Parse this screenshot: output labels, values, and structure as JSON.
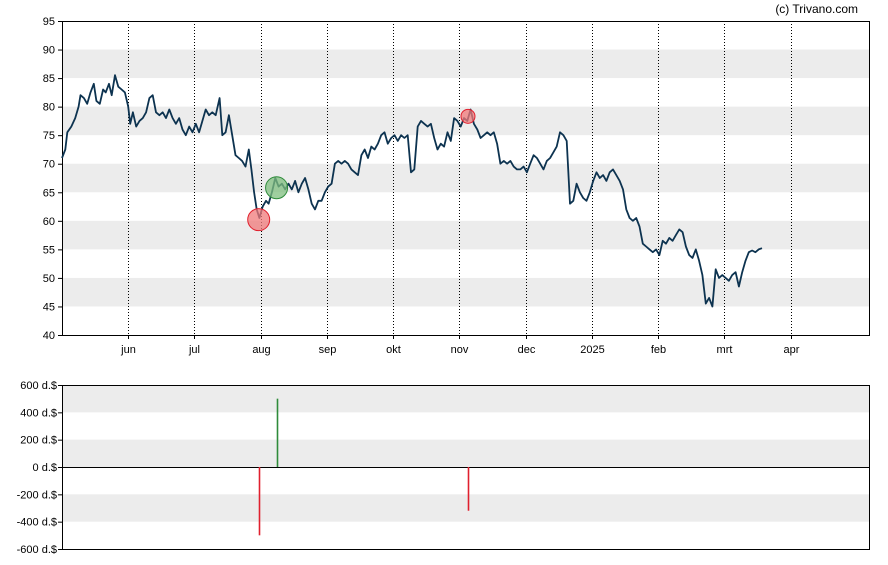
{
  "credit": "(c) Trivano.com",
  "colors": {
    "price_line": "#0d3350",
    "band": "#ececec",
    "buy": "#2e8b3a",
    "sell": "#e0202e",
    "buy_fill": "#7fbf7f",
    "sell_fill": "#f07a7a"
  },
  "chart_data": [
    {
      "type": "line",
      "title": "",
      "xlabel": "",
      "ylabel": "",
      "x_range": [
        0,
        12.2
      ],
      "ylim": [
        40,
        95
      ],
      "y_ticks": [
        40,
        45,
        50,
        55,
        60,
        65,
        70,
        75,
        80,
        85,
        90,
        95
      ],
      "month_ticks": [
        {
          "label": "jun",
          "x": 1
        },
        {
          "label": "jul",
          "x": 2
        },
        {
          "label": "aug",
          "x": 3
        },
        {
          "label": "sep",
          "x": 4
        },
        {
          "label": "okt",
          "x": 5
        },
        {
          "label": "nov",
          "x": 6
        },
        {
          "label": "dec",
          "x": 7
        },
        {
          "label": "2025",
          "x": 8
        },
        {
          "label": "feb",
          "x": 9
        },
        {
          "label": "mrt",
          "x": 10
        },
        {
          "label": "apr",
          "x": 11
        }
      ],
      "grid": "alternating horizontal bands, dotted vertical month lines",
      "series": [
        {
          "points": [
            [
              0.0,
              71.0
            ],
            [
              0.05,
              72.5
            ],
            [
              0.08,
              75.5
            ],
            [
              0.14,
              76.5
            ],
            [
              0.2,
              78.0
            ],
            [
              0.25,
              80.0
            ],
            [
              0.28,
              82.0
            ],
            [
              0.33,
              81.5
            ],
            [
              0.38,
              80.5
            ],
            [
              0.43,
              82.5
            ],
            [
              0.48,
              84.0
            ],
            [
              0.52,
              81.0
            ],
            [
              0.57,
              80.5
            ],
            [
              0.62,
              83.0
            ],
            [
              0.66,
              82.5
            ],
            [
              0.71,
              84.0
            ],
            [
              0.75,
              82.0
            ],
            [
              0.8,
              85.5
            ],
            [
              0.85,
              83.5
            ],
            [
              0.9,
              83.0
            ],
            [
              0.95,
              82.5
            ],
            [
              1.0,
              80.0
            ],
            [
              1.03,
              77.0
            ],
            [
              1.07,
              79.0
            ],
            [
              1.12,
              76.5
            ],
            [
              1.17,
              77.5
            ],
            [
              1.22,
              78.0
            ],
            [
              1.27,
              79.0
            ],
            [
              1.32,
              81.5
            ],
            [
              1.37,
              82.0
            ],
            [
              1.42,
              79.0
            ],
            [
              1.47,
              78.5
            ],
            [
              1.52,
              79.0
            ],
            [
              1.57,
              78.0
            ],
            [
              1.62,
              79.5
            ],
            [
              1.67,
              78.0
            ],
            [
              1.72,
              77.0
            ],
            [
              1.77,
              78.0
            ],
            [
              1.82,
              76.0
            ],
            [
              1.87,
              75.0
            ],
            [
              1.92,
              76.5
            ],
            [
              1.97,
              75.5
            ],
            [
              2.02,
              77.0
            ],
            [
              2.07,
              75.5
            ],
            [
              2.12,
              77.5
            ],
            [
              2.17,
              79.5
            ],
            [
              2.22,
              78.5
            ],
            [
              2.27,
              79.0
            ],
            [
              2.32,
              78.5
            ],
            [
              2.38,
              81.5
            ],
            [
              2.42,
              75.0
            ],
            [
              2.47,
              75.5
            ],
            [
              2.52,
              78.5
            ],
            [
              2.57,
              75.0
            ],
            [
              2.62,
              71.5
            ],
            [
              2.67,
              71.0
            ],
            [
              2.72,
              70.5
            ],
            [
              2.77,
              69.5
            ],
            [
              2.82,
              72.5
            ],
            [
              2.86,
              69.0
            ],
            [
              2.9,
              65.0
            ],
            [
              2.94,
              62.0
            ],
            [
              2.98,
              60.5
            ],
            [
              3.03,
              62.5
            ],
            [
              3.08,
              63.5
            ],
            [
              3.12,
              63.0
            ],
            [
              3.17,
              65.0
            ],
            [
              3.22,
              67.5
            ],
            [
              3.27,
              66.0
            ],
            [
              3.32,
              66.5
            ],
            [
              3.37,
              65.5
            ],
            [
              3.42,
              66.5
            ],
            [
              3.47,
              65.5
            ],
            [
              3.52,
              67.0
            ],
            [
              3.57,
              65.0
            ],
            [
              3.62,
              66.5
            ],
            [
              3.67,
              67.5
            ],
            [
              3.72,
              65.5
            ],
            [
              3.77,
              63.0
            ],
            [
              3.82,
              62.0
            ],
            [
              3.87,
              63.5
            ],
            [
              3.92,
              63.5
            ],
            [
              3.97,
              65.0
            ],
            [
              4.02,
              66.0
            ],
            [
              4.07,
              66.5
            ],
            [
              4.12,
              70.0
            ],
            [
              4.17,
              70.5
            ],
            [
              4.22,
              70.0
            ],
            [
              4.27,
              70.5
            ],
            [
              4.32,
              70.0
            ],
            [
              4.37,
              69.0
            ],
            [
              4.42,
              68.5
            ],
            [
              4.47,
              68.0
            ],
            [
              4.52,
              71.5
            ],
            [
              4.57,
              72.5
            ],
            [
              4.62,
              71.0
            ],
            [
              4.67,
              73.0
            ],
            [
              4.72,
              72.5
            ],
            [
              4.77,
              73.5
            ],
            [
              4.82,
              75.0
            ],
            [
              4.87,
              75.5
            ],
            [
              4.92,
              73.5
            ],
            [
              4.97,
              74.5
            ],
            [
              5.02,
              75.0
            ],
            [
              5.07,
              74.0
            ],
            [
              5.12,
              75.0
            ],
            [
              5.17,
              74.5
            ],
            [
              5.22,
              75.0
            ],
            [
              5.27,
              68.5
            ],
            [
              5.32,
              69.0
            ],
            [
              5.37,
              76.5
            ],
            [
              5.42,
              77.5
            ],
            [
              5.47,
              77.0
            ],
            [
              5.52,
              76.5
            ],
            [
              5.57,
              77.0
            ],
            [
              5.62,
              74.5
            ],
            [
              5.67,
              72.5
            ],
            [
              5.72,
              73.5
            ],
            [
              5.77,
              73.0
            ],
            [
              5.82,
              75.5
            ],
            [
              5.87,
              74.0
            ],
            [
              5.92,
              78.0
            ],
            [
              5.97,
              77.5
            ],
            [
              6.02,
              76.5
            ],
            [
              6.07,
              78.0
            ],
            [
              6.12,
              77.5
            ],
            [
              6.17,
              79.5
            ],
            [
              6.22,
              77.0
            ],
            [
              6.27,
              76.0
            ],
            [
              6.32,
              74.5
            ],
            [
              6.37,
              75.0
            ],
            [
              6.42,
              75.5
            ],
            [
              6.47,
              75.0
            ],
            [
              6.52,
              75.5
            ],
            [
              6.57,
              73.5
            ],
            [
              6.62,
              70.0
            ],
            [
              6.67,
              70.5
            ],
            [
              6.72,
              70.0
            ],
            [
              6.77,
              70.5
            ],
            [
              6.82,
              69.5
            ],
            [
              6.87,
              69.0
            ],
            [
              6.92,
              69.0
            ],
            [
              6.97,
              69.5
            ],
            [
              7.02,
              68.5
            ],
            [
              7.07,
              70.0
            ],
            [
              7.12,
              71.5
            ],
            [
              7.17,
              71.0
            ],
            [
              7.22,
              70.0
            ],
            [
              7.27,
              69.0
            ],
            [
              7.32,
              70.5
            ],
            [
              7.37,
              71.0
            ],
            [
              7.42,
              72.0
            ],
            [
              7.47,
              73.0
            ],
            [
              7.52,
              75.5
            ],
            [
              7.57,
              75.0
            ],
            [
              7.62,
              74.0
            ],
            [
              7.67,
              63.0
            ],
            [
              7.72,
              63.5
            ],
            [
              7.77,
              66.5
            ],
            [
              7.82,
              65.0
            ],
            [
              7.87,
              64.0
            ],
            [
              7.92,
              63.5
            ],
            [
              7.97,
              65.0
            ],
            [
              8.02,
              67.0
            ],
            [
              8.07,
              68.5
            ],
            [
              8.12,
              67.5
            ],
            [
              8.17,
              68.0
            ],
            [
              8.22,
              67.0
            ],
            [
              8.27,
              68.5
            ],
            [
              8.32,
              69.0
            ],
            [
              8.37,
              68.0
            ],
            [
              8.42,
              67.0
            ],
            [
              8.47,
              65.5
            ],
            [
              8.52,
              62.0
            ],
            [
              8.57,
              60.5
            ],
            [
              8.62,
              60.0
            ],
            [
              8.67,
              60.5
            ],
            [
              8.72,
              59.0
            ],
            [
              8.77,
              56.0
            ],
            [
              8.82,
              55.5
            ],
            [
              8.87,
              55.0
            ],
            [
              8.92,
              54.5
            ],
            [
              8.97,
              55.0
            ],
            [
              9.02,
              54.0
            ],
            [
              9.07,
              56.5
            ],
            [
              9.12,
              56.0
            ],
            [
              9.17,
              57.0
            ],
            [
              9.22,
              56.5
            ],
            [
              9.27,
              57.5
            ],
            [
              9.32,
              58.5
            ],
            [
              9.37,
              58.0
            ],
            [
              9.42,
              55.5
            ],
            [
              9.47,
              54.0
            ],
            [
              9.52,
              53.5
            ],
            [
              9.57,
              55.0
            ],
            [
              9.62,
              53.0
            ],
            [
              9.67,
              50.5
            ],
            [
              9.72,
              45.5
            ],
            [
              9.77,
              46.5
            ],
            [
              9.82,
              45.0
            ],
            [
              9.87,
              51.5
            ],
            [
              9.92,
              50.0
            ],
            [
              9.97,
              50.5
            ],
            [
              10.02,
              50.0
            ],
            [
              10.07,
              49.5
            ],
            [
              10.12,
              50.5
            ],
            [
              10.17,
              51.0
            ],
            [
              10.22,
              48.5
            ],
            [
              10.27,
              51.0
            ],
            [
              10.32,
              53.0
            ],
            [
              10.37,
              54.5
            ],
            [
              10.42,
              54.8
            ],
            [
              10.47,
              54.5
            ],
            [
              10.52,
              55.0
            ],
            [
              10.57,
              55.2
            ]
          ]
        }
      ],
      "markers": [
        {
          "kind": "sell",
          "x": 2.97,
          "y": 60.2,
          "size": "large"
        },
        {
          "kind": "buy",
          "x": 3.24,
          "y": 65.8,
          "size": "large"
        },
        {
          "kind": "sell",
          "x": 6.13,
          "y": 78.3,
          "size": "small"
        }
      ]
    },
    {
      "type": "bar",
      "title": "",
      "xlabel": "",
      "ylabel": "",
      "ylim": [
        -600,
        600
      ],
      "y_ticks": [
        {
          "value": 600,
          "label": "600 d.$"
        },
        {
          "value": 400,
          "label": "400 d.$"
        },
        {
          "value": 200,
          "label": "200 d.$"
        },
        {
          "value": 0,
          "label": "0 d.$"
        },
        {
          "value": -200,
          "label": "-200 d.$"
        },
        {
          "value": -400,
          "label": "-400 d.$"
        },
        {
          "value": -600,
          "label": "-600 d.$"
        }
      ],
      "bars": [
        {
          "kind": "sell",
          "x": 2.97,
          "value": -500
        },
        {
          "kind": "buy",
          "x": 3.24,
          "value": 500
        },
        {
          "kind": "sell",
          "x": 6.13,
          "value": -320
        }
      ]
    }
  ]
}
